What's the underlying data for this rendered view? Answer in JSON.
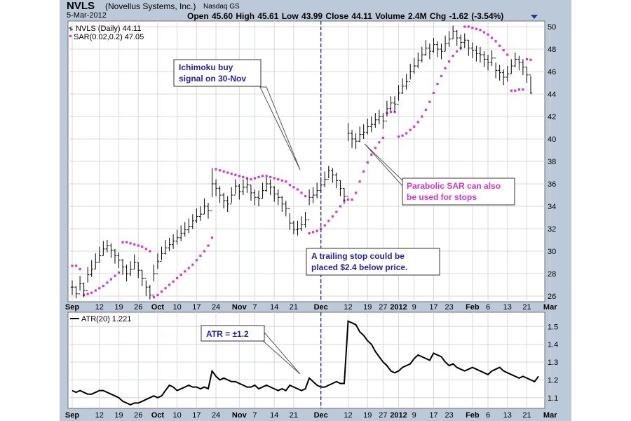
{
  "header": {
    "ticker": "NVLS",
    "company": "(Novellus Systems, Inc.)",
    "exchange": "Nasdaq GS",
    "date": "5-Mar-2012",
    "quote": "Open 45.60   High 45.61   Low 43.99   Close 44.11   Volume 2.4M   Chg -1.62 (-3.54%)"
  },
  "legend": {
    "price": "NVLS (Daily) 44.11",
    "sar": "SAR(0.02,0.2) 47.05",
    "atr": "ATR(20) 1.221"
  },
  "annotations": {
    "ichimoku_line1": "Ichimoku buy",
    "ichimoku_line2": "signal on 30-Nov",
    "sar_line1": "Parabolic SAR can also",
    "sar_line2": "be used for stops",
    "trail_line1": "A trailing stop could be",
    "trail_line2": "placed $2.4 below price.",
    "atr": "ATR = ±1.2"
  },
  "colors": {
    "price": "#000000",
    "sar": "#dd33cc",
    "frame": "#bcc9d8",
    "annotation_text": "#1f1fb8"
  },
  "chart_data": [
    {
      "type": "ohlc",
      "panel": "price",
      "ylim": [
        25.5,
        50.5
      ],
      "y_ticks": [
        26,
        28,
        30,
        32,
        34,
        36,
        38,
        40,
        42,
        44,
        46,
        48,
        50
      ],
      "x_tick_labels": [
        {
          "label": "Sep",
          "bold": true,
          "x": 0
        },
        {
          "label": "12",
          "x": 7
        },
        {
          "label": "19",
          "x": 12
        },
        {
          "label": "26",
          "x": 17
        },
        {
          "label": "Oct",
          "bold": true,
          "x": 22
        },
        {
          "label": "10",
          "x": 27
        },
        {
          "label": "17",
          "x": 32
        },
        {
          "label": "24",
          "x": 37
        },
        {
          "label": "Nov",
          "bold": true,
          "x": 43
        },
        {
          "label": "7",
          "x": 47
        },
        {
          "label": "14",
          "x": 52
        },
        {
          "label": "21",
          "x": 57
        },
        {
          "label": "Dec",
          "bold": true,
          "x": 64
        },
        {
          "label": "12",
          "x": 71
        },
        {
          "label": "19",
          "x": 76
        },
        {
          "label": "27",
          "x": 80
        },
        {
          "label": "2012",
          "bold": true,
          "x": 84
        },
        {
          "label": "9",
          "x": 88
        },
        {
          "label": "17",
          "x": 93
        },
        {
          "label": "23",
          "x": 97
        },
        {
          "label": "Feb",
          "bold": true,
          "x": 103
        },
        {
          "label": "6",
          "x": 107
        },
        {
          "label": "13",
          "x": 112
        },
        {
          "label": "21",
          "x": 117
        },
        {
          "label": "Mar",
          "bold": true,
          "x": 123
        }
      ],
      "signal_x": 64,
      "close": [
        26.8,
        26.2,
        27.1,
        26.5,
        27.9,
        28.4,
        29.0,
        29.6,
        30.2,
        30.5,
        30.1,
        29.6,
        29.2,
        28.6,
        28.0,
        28.4,
        29.0,
        28.3,
        27.6,
        26.8,
        26.1,
        28.0,
        29.1,
        29.8,
        30.3,
        30.6,
        30.9,
        31.2,
        31.6,
        31.9,
        32.2,
        32.7,
        33.1,
        33.3,
        34.0,
        33.6,
        36.0,
        35.6,
        35.0,
        34.5,
        34.2,
        35.0,
        35.8,
        35.3,
        35.7,
        35.9,
        35.2,
        34.8,
        34.7,
        35.4,
        36.0,
        35.7,
        35.1,
        34.8,
        34.2,
        33.8,
        32.5,
        31.9,
        32.0,
        32.4,
        32.8,
        34.8,
        35.0,
        35.4,
        35.9,
        36.4,
        37.2,
        36.8,
        36.3,
        35.6,
        34.9,
        40.5,
        40.0,
        39.8,
        40.4,
        40.6,
        41.1,
        41.3,
        41.7,
        42.0,
        41.6,
        42.7,
        43.2,
        43.1,
        44.1,
        44.7,
        45.1,
        46.0,
        46.5,
        47.0,
        47.5,
        48.1,
        47.8,
        48.4,
        48.0,
        47.8,
        48.5,
        48.9,
        49.6,
        49.0,
        48.6,
        48.8,
        48.1,
        47.9,
        47.6,
        47.5,
        47.1,
        46.8,
        47.2,
        46.1,
        45.9,
        45.5,
        45.8,
        46.5,
        47.1,
        46.8,
        46.4,
        45.7,
        44.1
      ],
      "high": [
        27.4,
        26.9,
        27.8,
        27.2,
        28.6,
        29.2,
        29.8,
        30.4,
        30.9,
        31.0,
        30.7,
        30.2,
        29.9,
        29.3,
        28.8,
        29.1,
        29.7,
        29.0,
        28.3,
        27.4,
        27.0,
        28.8,
        29.8,
        30.4,
        31.0,
        31.2,
        31.5,
        31.9,
        32.3,
        32.6,
        32.9,
        33.3,
        33.8,
        34.0,
        34.7,
        34.3,
        37.4,
        36.4,
        35.8,
        35.2,
        34.9,
        35.7,
        36.4,
        36.0,
        36.4,
        36.5,
        35.9,
        35.5,
        35.4,
        36.1,
        36.6,
        36.4,
        35.8,
        35.5,
        34.9,
        34.5,
        33.4,
        32.7,
        32.7,
        33.1,
        33.5,
        35.5,
        35.7,
        36.1,
        36.6,
        37.1,
        37.6,
        37.4,
        37.0,
        36.3,
        35.6,
        41.4,
        40.8,
        40.5,
        41.1,
        41.3,
        41.8,
        42.0,
        42.3,
        42.6,
        42.3,
        43.4,
        43.8,
        43.8,
        44.8,
        45.4,
        45.8,
        46.7,
        47.2,
        47.7,
        48.2,
        48.8,
        48.5,
        49.0,
        48.7,
        48.5,
        49.2,
        49.6,
        50.1,
        49.7,
        49.3,
        49.4,
        48.8,
        48.6,
        48.3,
        48.2,
        47.8,
        47.5,
        47.9,
        46.8,
        46.6,
        46.2,
        46.5,
        47.1,
        47.7,
        47.4,
        47.1,
        46.4,
        45.6
      ],
      "low": [
        26.1,
        25.8,
        26.5,
        25.9,
        27.2,
        27.7,
        28.4,
        29.0,
        29.6,
        29.9,
        29.4,
        28.9,
        28.5,
        27.9,
        27.3,
        27.8,
        28.4,
        27.6,
        26.9,
        26.0,
        25.7,
        27.3,
        28.4,
        29.2,
        29.7,
        30.0,
        30.2,
        30.6,
        30.9,
        31.3,
        31.6,
        32.0,
        32.5,
        32.7,
        33.3,
        32.9,
        34.8,
        34.9,
        34.3,
        33.8,
        33.5,
        34.3,
        35.1,
        34.6,
        35.0,
        35.2,
        34.5,
        34.1,
        34.0,
        34.7,
        35.3,
        35.0,
        34.4,
        34.1,
        33.5,
        33.1,
        31.9,
        31.5,
        31.4,
        31.8,
        32.1,
        34.1,
        34.3,
        34.7,
        35.2,
        35.7,
        36.5,
        36.1,
        35.6,
        34.9,
        34.2,
        39.8,
        39.2,
        39.1,
        39.7,
        40.0,
        40.4,
        40.6,
        41.0,
        41.3,
        40.9,
        42.0,
        42.5,
        42.4,
        43.4,
        44.0,
        44.4,
        45.3,
        45.8,
        46.3,
        46.8,
        47.4,
        47.1,
        47.7,
        47.3,
        47.1,
        47.8,
        48.2,
        48.9,
        48.3,
        47.9,
        48.1,
        47.4,
        47.2,
        46.9,
        46.8,
        46.4,
        46.1,
        46.5,
        45.4,
        45.2,
        44.8,
        45.1,
        45.8,
        46.4,
        46.1,
        45.7,
        45.0,
        43.99
      ],
      "sar": [
        28.7,
        28.7,
        28.4,
        26.1,
        26.2,
        26.3,
        26.5,
        26.7,
        26.9,
        27.2,
        27.5,
        27.8,
        28.1,
        30.8,
        30.8,
        30.7,
        30.6,
        30.5,
        30.4,
        30.2,
        30.0,
        25.9,
        26.1,
        26.4,
        26.7,
        27.0,
        27.3,
        27.6,
        27.9,
        28.2,
        28.5,
        28.8,
        29.2,
        29.6,
        30.0,
        30.5,
        31.2,
        37.3,
        37.2,
        37.1,
        37.0,
        36.9,
        36.8,
        36.7,
        36.6,
        36.5,
        36.4,
        36.5,
        36.6,
        36.7,
        36.7,
        36.6,
        36.5,
        36.4,
        36.3,
        36.2,
        35.9,
        35.7,
        35.5,
        35.2,
        34.9,
        31.6,
        31.7,
        31.8,
        32.0,
        32.3,
        32.7,
        33.1,
        33.5,
        34.0,
        34.5,
        34.6,
        34.6,
        35.2,
        36.2,
        37.1,
        37.9,
        38.6,
        39.2,
        39.7,
        40.1,
        42.3,
        42.4,
        42.4,
        40.2,
        40.3,
        40.5,
        40.8,
        41.1,
        41.5,
        42.0,
        42.6,
        43.3,
        44.1,
        44.9,
        45.6,
        46.3,
        46.9,
        47.4,
        47.8,
        48.1,
        50.0,
        50.0,
        49.9,
        49.8,
        49.7,
        49.5,
        49.3,
        49.0,
        48.7,
        48.3,
        47.9,
        47.5,
        44.3,
        44.3,
        44.4,
        44.4,
        47.1,
        47.05
      ],
      "legend": [
        "NVLS (Daily) 44.11",
        "SAR(0.02,0.2) 47.05"
      ]
    },
    {
      "type": "line",
      "panel": "indicator",
      "name": "ATR(20) 1.221",
      "ylim": [
        1.04,
        1.58
      ],
      "y_ticks": [
        1.1,
        1.2,
        1.3,
        1.4,
        1.5
      ],
      "values": [
        1.14,
        1.13,
        1.14,
        1.13,
        1.12,
        1.12,
        1.13,
        1.14,
        1.14,
        1.13,
        1.12,
        1.11,
        1.1,
        1.08,
        1.07,
        1.06,
        1.07,
        1.07,
        1.08,
        1.09,
        1.1,
        1.11,
        1.1,
        1.11,
        1.14,
        1.17,
        1.16,
        1.14,
        1.15,
        1.16,
        1.17,
        1.16,
        1.16,
        1.15,
        1.16,
        1.15,
        1.25,
        1.22,
        1.2,
        1.21,
        1.2,
        1.19,
        1.19,
        1.18,
        1.17,
        1.16,
        1.16,
        1.17,
        1.15,
        1.16,
        1.17,
        1.16,
        1.15,
        1.14,
        1.15,
        1.14,
        1.17,
        1.16,
        1.15,
        1.14,
        1.15,
        1.21,
        1.19,
        1.17,
        1.16,
        1.16,
        1.17,
        1.18,
        1.19,
        1.18,
        1.18,
        1.53,
        1.52,
        1.51,
        1.47,
        1.45,
        1.42,
        1.4,
        1.36,
        1.33,
        1.3,
        1.28,
        1.25,
        1.24,
        1.25,
        1.27,
        1.28,
        1.29,
        1.32,
        1.34,
        1.33,
        1.32,
        1.31,
        1.35,
        1.34,
        1.33,
        1.3,
        1.28,
        1.29,
        1.27,
        1.26,
        1.25,
        1.26,
        1.27,
        1.26,
        1.25,
        1.24,
        1.23,
        1.25,
        1.26,
        1.27,
        1.25,
        1.24,
        1.23,
        1.22,
        1.21,
        1.22,
        1.21,
        1.2,
        1.19,
        1.22
      ]
    }
  ]
}
